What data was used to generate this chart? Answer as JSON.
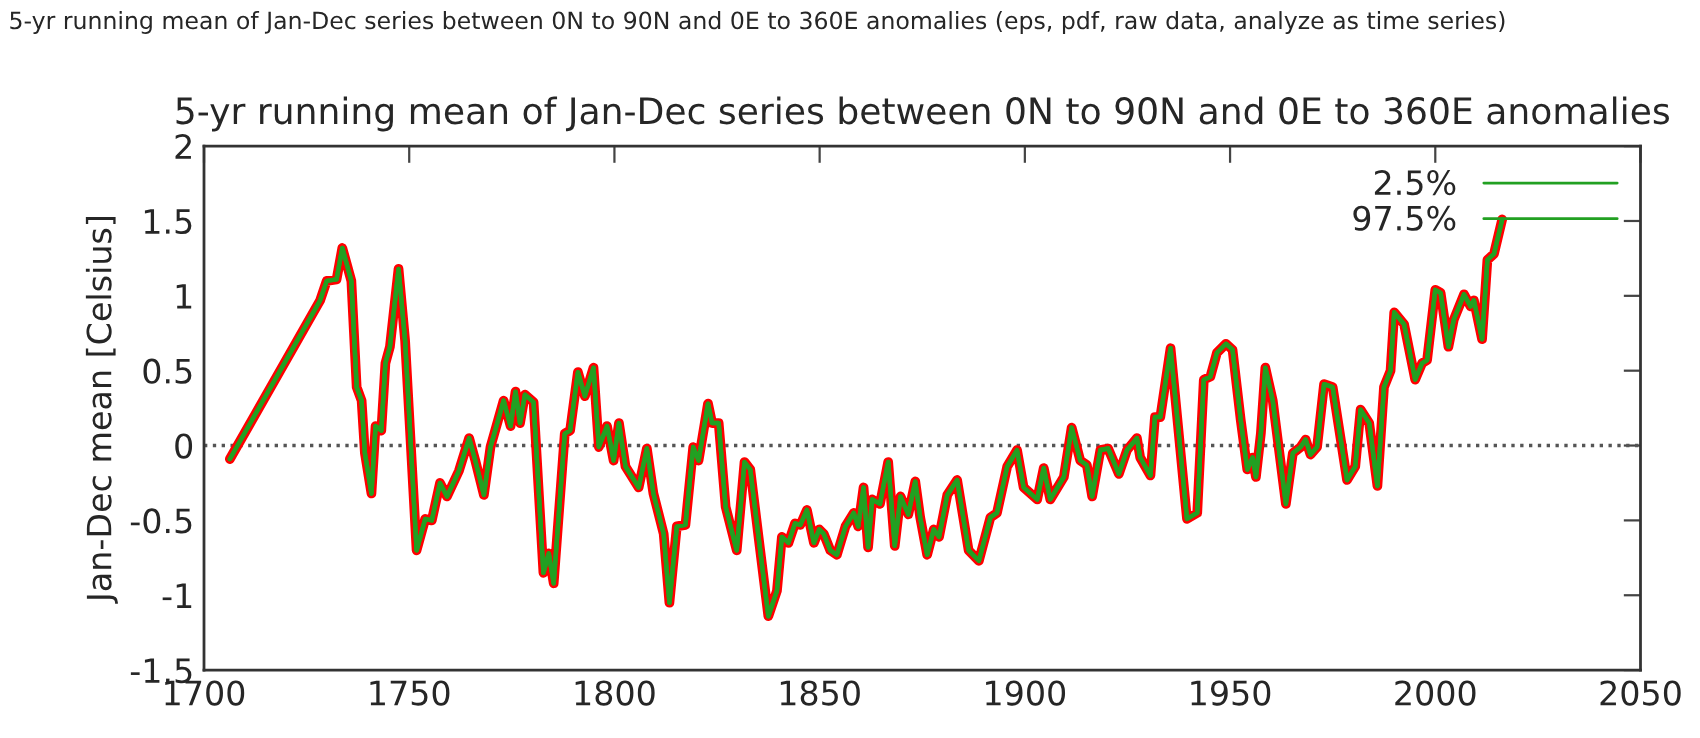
{
  "chart_data": {
    "type": "line",
    "title": "5-yr running mean of Jan-Dec series between 0N to 90N and 0E to 360E anomalies",
    "ylabel": "Jan-Dec mean [Celsius]",
    "annotations": [
      "5-yr running mean of Jan-Dec series between 0N to 90N and 0E to 360E anomalies (eps, pdf, raw data, analyze as time series)"
    ],
    "x": [
      1706.3,
      1728.3,
      1729.9,
      1732.3,
      1733.7,
      1735.9,
      1737.2,
      1738.4,
      1739.2,
      1740.8,
      1741.8,
      1743.2,
      1744.2,
      1745.3,
      1747.4,
      1749.0,
      1751.8,
      1753.9,
      1755.5,
      1757.5,
      1759.2,
      1762.1,
      1764.6,
      1766.1,
      1768.2,
      1769.8,
      1773.0,
      1774.7,
      1775.9,
      1777.0,
      1778.2,
      1780.3,
      1782.7,
      1784.0,
      1785.2,
      1787.9,
      1789.2,
      1791.1,
      1792.8,
      1794.9,
      1796.2,
      1798.2,
      1799.8,
      1801.1,
      1802.7,
      1805.9,
      1807.9,
      1809.5,
      1812.0,
      1813.4,
      1815.2,
      1817.3,
      1819.2,
      1820.5,
      1822.8,
      1823.8,
      1825.4,
      1827.1,
      1829.8,
      1831.7,
      1833.1,
      1835.2,
      1837.5,
      1839.6,
      1840.8,
      1842.4,
      1844.0,
      1845.3,
      1846.9,
      1848.6,
      1849.9,
      1851.0,
      1852.6,
      1854.2,
      1856.3,
      1858.3,
      1859.4,
      1860.7,
      1861.8,
      1862.8,
      1864.7,
      1866.7,
      1868.3,
      1869.7,
      1871.6,
      1873.3,
      1874.5,
      1876.2,
      1877.8,
      1879.1,
      1881.1,
      1883.5,
      1886.3,
      1888.8,
      1891.6,
      1893.2,
      1895.7,
      1898.1,
      1899.7,
      1903.0,
      1904.6,
      1906.2,
      1909.5,
      1911.4,
      1913.5,
      1915.1,
      1916.4,
      1918.4,
      1920.3,
      1922.9,
      1924.9,
      1927.3,
      1928.1,
      1930.6,
      1931.7,
      1933.0,
      1935.5,
      1939.5,
      1942.0,
      1943.6,
      1945.2,
      1946.8,
      1949.0,
      1950.6,
      1952.6,
      1954.2,
      1955.5,
      1956.3,
      1957.5,
      1958.6,
      1960.4,
      1963.6,
      1965.3,
      1967.2,
      1968.4,
      1969.6,
      1971.2,
      1972.9,
      1975.0,
      1978.5,
      1980.5,
      1981.8,
      1983.9,
      1985.9,
      1987.5,
      1989.1,
      1990.0,
      1992.4,
      1995.1,
      1996.8,
      1998.0,
      2000.0,
      2001.3,
      2003.2,
      2004.5,
      2007.0,
      2008.6,
      2009.4,
      2011.4,
      2012.7,
      2014.3,
      2016.3
    ],
    "series": [
      {
        "color": "#ff0000",
        "values": [
          -0.09,
          0.97,
          1.1,
          1.11,
          1.32,
          1.1,
          0.39,
          0.3,
          -0.05,
          -0.32,
          0.13,
          0.1,
          0.55,
          0.66,
          1.18,
          0.7,
          -0.7,
          -0.49,
          -0.5,
          -0.25,
          -0.34,
          -0.17,
          0.05,
          -0.1,
          -0.33,
          -0.01,
          0.3,
          0.13,
          0.36,
          0.15,
          0.34,
          0.29,
          -0.85,
          -0.72,
          -0.92,
          0.08,
          0.1,
          0.49,
          0.33,
          0.52,
          -0.01,
          0.13,
          -0.1,
          0.15,
          -0.14,
          -0.28,
          -0.02,
          -0.32,
          -0.59,
          -1.05,
          -0.54,
          -0.53,
          -0.01,
          -0.1,
          0.28,
          0.15,
          0.15,
          -0.41,
          -0.7,
          -0.11,
          -0.16,
          -0.63,
          -1.14,
          -0.97,
          -0.61,
          -0.65,
          -0.52,
          -0.53,
          -0.43,
          -0.65,
          -0.56,
          -0.59,
          -0.7,
          -0.73,
          -0.54,
          -0.45,
          -0.54,
          -0.28,
          -0.68,
          -0.36,
          -0.39,
          -0.11,
          -0.67,
          -0.34,
          -0.46,
          -0.24,
          -0.48,
          -0.73,
          -0.56,
          -0.61,
          -0.33,
          -0.23,
          -0.7,
          -0.77,
          -0.48,
          -0.45,
          -0.14,
          -0.03,
          -0.28,
          -0.36,
          -0.15,
          -0.36,
          -0.21,
          0.12,
          -0.1,
          -0.13,
          -0.34,
          -0.03,
          -0.02,
          -0.19,
          -0.03,
          0.05,
          -0.08,
          -0.2,
          0.19,
          0.19,
          0.65,
          -0.49,
          -0.45,
          0.44,
          0.46,
          0.62,
          0.68,
          0.64,
          0.17,
          -0.16,
          -0.08,
          -0.21,
          0.08,
          0.52,
          0.3,
          -0.39,
          -0.05,
          -0.01,
          0.04,
          -0.06,
          -0.01,
          0.41,
          0.39,
          -0.23,
          -0.14,
          0.24,
          0.15,
          -0.27,
          0.39,
          0.5,
          0.89,
          0.81,
          0.44,
          0.55,
          0.57,
          1.04,
          1.02,
          0.66,
          0.84,
          1.01,
          0.93,
          0.97,
          0.71,
          1.24,
          1.28,
          1.51
        ]
      },
      {
        "name": "2.5%",
        "color": "#22a022",
        "values": [
          -0.09,
          0.97,
          1.1,
          1.11,
          1.32,
          1.1,
          0.39,
          0.3,
          -0.05,
          -0.32,
          0.13,
          0.1,
          0.55,
          0.66,
          1.18,
          0.7,
          -0.7,
          -0.49,
          -0.5,
          -0.25,
          -0.34,
          -0.17,
          0.05,
          -0.1,
          -0.33,
          -0.01,
          0.3,
          0.13,
          0.36,
          0.15,
          0.34,
          0.29,
          -0.85,
          -0.72,
          -0.92,
          0.08,
          0.1,
          0.49,
          0.33,
          0.52,
          -0.01,
          0.13,
          -0.1,
          0.15,
          -0.14,
          -0.28,
          -0.02,
          -0.32,
          -0.59,
          -1.05,
          -0.54,
          -0.53,
          -0.01,
          -0.1,
          0.28,
          0.15,
          0.15,
          -0.41,
          -0.7,
          -0.11,
          -0.16,
          -0.63,
          -1.14,
          -0.97,
          -0.61,
          -0.65,
          -0.52,
          -0.53,
          -0.43,
          -0.65,
          -0.56,
          -0.59,
          -0.7,
          -0.73,
          -0.54,
          -0.45,
          -0.54,
          -0.28,
          -0.68,
          -0.36,
          -0.39,
          -0.11,
          -0.67,
          -0.34,
          -0.46,
          -0.24,
          -0.48,
          -0.73,
          -0.56,
          -0.61,
          -0.33,
          -0.23,
          -0.7,
          -0.77,
          -0.48,
          -0.45,
          -0.14,
          -0.03,
          -0.28,
          -0.36,
          -0.15,
          -0.36,
          -0.21,
          0.12,
          -0.1,
          -0.13,
          -0.34,
          -0.03,
          -0.02,
          -0.19,
          -0.03,
          0.05,
          -0.08,
          -0.2,
          0.19,
          0.19,
          0.65,
          -0.49,
          -0.45,
          0.44,
          0.46,
          0.62,
          0.68,
          0.64,
          0.17,
          -0.16,
          -0.08,
          -0.21,
          0.08,
          0.52,
          0.3,
          -0.39,
          -0.05,
          -0.01,
          0.04,
          -0.06,
          -0.01,
          0.41,
          0.39,
          -0.23,
          -0.14,
          0.24,
          0.15,
          -0.27,
          0.39,
          0.5,
          0.89,
          0.81,
          0.44,
          0.55,
          0.57,
          1.04,
          1.02,
          0.66,
          0.84,
          1.01,
          0.93,
          0.97,
          0.71,
          1.24,
          1.28,
          1.51
        ]
      },
      {
        "name": "97.5%",
        "color": "#22a022",
        "values": [
          -0.09,
          0.97,
          1.1,
          1.11,
          1.32,
          1.1,
          0.39,
          0.3,
          -0.05,
          -0.32,
          0.13,
          0.1,
          0.55,
          0.66,
          1.18,
          0.7,
          -0.7,
          -0.49,
          -0.5,
          -0.25,
          -0.34,
          -0.17,
          0.05,
          -0.1,
          -0.33,
          -0.01,
          0.3,
          0.13,
          0.36,
          0.15,
          0.34,
          0.29,
          -0.85,
          -0.72,
          -0.92,
          0.08,
          0.1,
          0.49,
          0.33,
          0.52,
          -0.01,
          0.13,
          -0.1,
          0.15,
          -0.14,
          -0.28,
          -0.02,
          -0.32,
          -0.59,
          -1.05,
          -0.54,
          -0.53,
          -0.01,
          -0.1,
          0.28,
          0.15,
          0.15,
          -0.41,
          -0.7,
          -0.11,
          -0.16,
          -0.63,
          -1.14,
          -0.97,
          -0.61,
          -0.65,
          -0.52,
          -0.53,
          -0.43,
          -0.65,
          -0.56,
          -0.59,
          -0.7,
          -0.73,
          -0.54,
          -0.45,
          -0.54,
          -0.28,
          -0.68,
          -0.36,
          -0.39,
          -0.11,
          -0.67,
          -0.34,
          -0.46,
          -0.24,
          -0.48,
          -0.73,
          -0.56,
          -0.61,
          -0.33,
          -0.23,
          -0.7,
          -0.77,
          -0.48,
          -0.45,
          -0.14,
          -0.03,
          -0.28,
          -0.36,
          -0.15,
          -0.36,
          -0.21,
          0.12,
          -0.1,
          -0.13,
          -0.34,
          -0.03,
          -0.02,
          -0.19,
          -0.03,
          0.05,
          -0.08,
          -0.2,
          0.19,
          0.19,
          0.65,
          -0.49,
          -0.45,
          0.44,
          0.46,
          0.62,
          0.68,
          0.64,
          0.17,
          -0.16,
          -0.08,
          -0.21,
          0.08,
          0.52,
          0.3,
          -0.39,
          -0.05,
          -0.01,
          0.04,
          -0.06,
          -0.01,
          0.41,
          0.39,
          -0.23,
          -0.14,
          0.24,
          0.15,
          -0.27,
          0.39,
          0.5,
          0.89,
          0.81,
          0.44,
          0.55,
          0.57,
          1.04,
          1.02,
          0.66,
          0.84,
          1.01,
          0.93,
          0.97,
          0.71,
          1.24,
          1.28,
          1.51
        ]
      }
    ],
    "xlim": [
      1700,
      2050
    ],
    "xticks": [
      1700,
      1750,
      1800,
      1850,
      1900,
      1950,
      2000,
      2050
    ],
    "ylim": [
      -1.5,
      2
    ],
    "yticks": [
      -1.5,
      -1,
      -0.5,
      0,
      0.5,
      1,
      1.5,
      2
    ],
    "ref_lines": [
      {
        "axis": "y",
        "value": 0,
        "line_style": "dotted",
        "color": "#555555"
      }
    ],
    "grid": false,
    "legend": "top right",
    "line_style": "solid",
    "marker": "none"
  }
}
